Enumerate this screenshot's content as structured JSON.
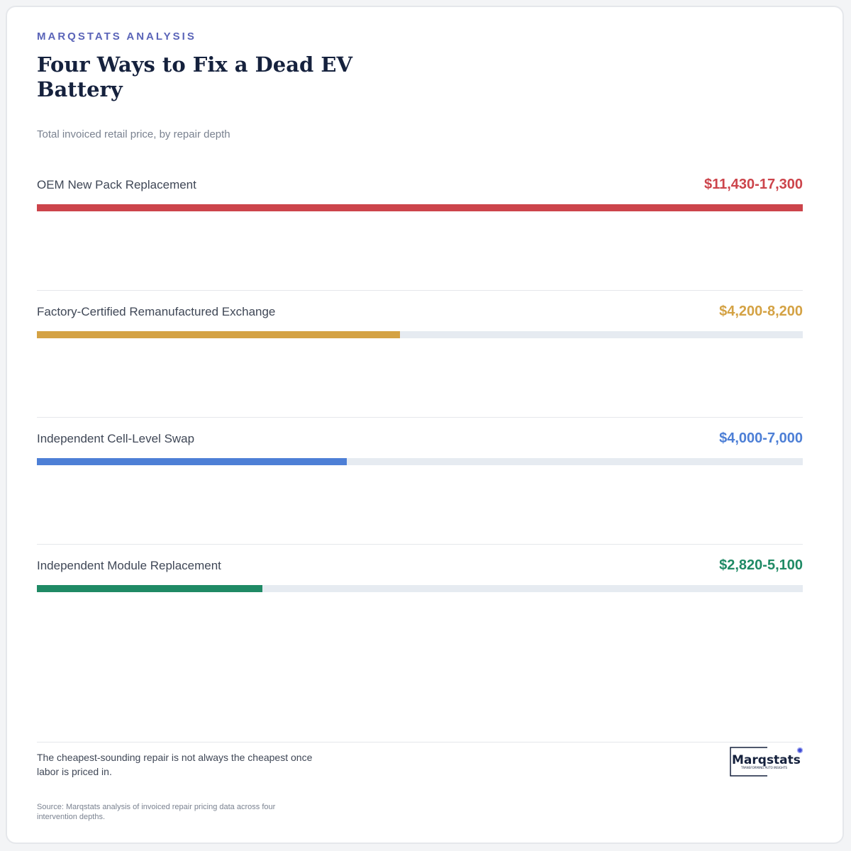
{
  "header": {
    "kicker": "MARQSTATS ANALYSIS",
    "title": "Four Ways to Fix a Dead EV Battery",
    "subtitle": "Total invoiced retail price, by repair depth"
  },
  "chart_data": {
    "type": "bar",
    "orientation": "horizontal",
    "title": "Four Ways to Fix a Dead EV Battery",
    "subtitle": "Total invoiced retail price, by repair depth",
    "unit": "USD",
    "xlim": [
      0,
      17300
    ],
    "grid": false,
    "legend": "none",
    "categories": [
      "OEM New Pack Replacement",
      "Factory-Certified Remanufactured Exchange",
      "Independent Cell-Level Swap",
      "Independent Module Replacement"
    ],
    "series": [
      {
        "values": [
          17300,
          8200,
          7000,
          5100
        ],
        "ranges": [
          [
            11430,
            17300
          ],
          [
            4200,
            8200
          ],
          [
            4000,
            7000
          ],
          [
            2820,
            5100
          ]
        ],
        "labels": [
          "$11,430-17,300",
          "$4,200-8,200",
          "$4,000-7,000",
          "$2,820-5,100"
        ],
        "colors": [
          "#cc444b",
          "#d4a244",
          "#4d7fd6",
          "#1f8a65"
        ]
      }
    ]
  },
  "footer": {
    "takeaway": "The cheapest-sounding repair is not always the cheapest once labor is priced in.",
    "source": "Source: Marqstats analysis of invoiced repair pricing data across four intervention depths."
  },
  "logo": {
    "wordmark": "Marqstats",
    "tagline": "TRANSFORMING AUTO INSIGHTS"
  },
  "colors": {
    "kicker": "#5a64b8",
    "title": "#15213d",
    "track": "#e6ebf1"
  }
}
